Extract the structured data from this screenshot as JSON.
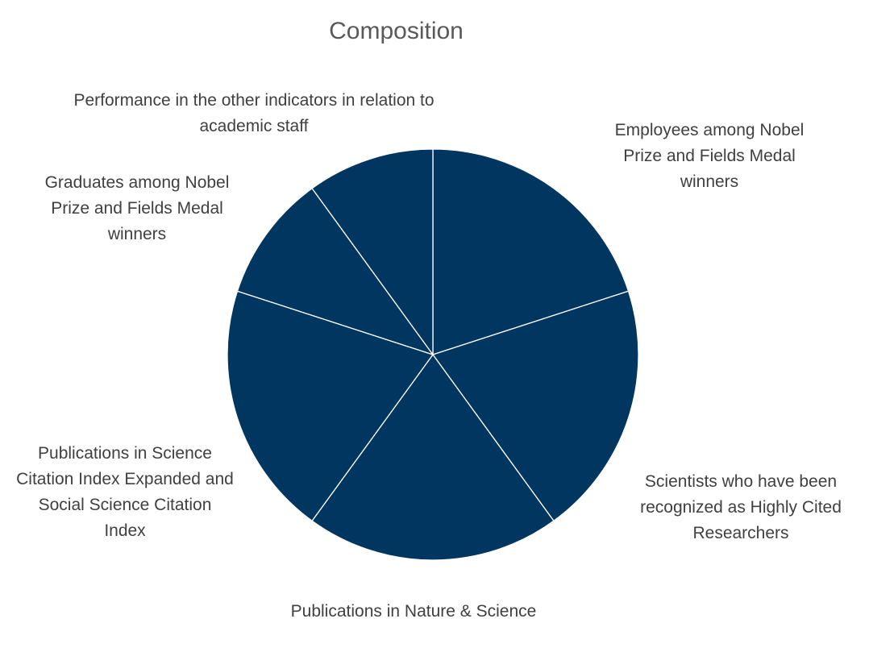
{
  "chart_data": {
    "type": "pie",
    "title": "Composition",
    "start_angle_deg": 0,
    "direction": "clockwise",
    "slice_color": "#003660",
    "separator_color": "#ffffff",
    "categories": [
      "Employees among Nobel Prize and Fields Medal winners",
      "Scientists who have been recognized as Highly Cited Researchers",
      "Publications in Nature & Science",
      "Publications in Science Citation Index Expanded and Social Science Citation Index",
      "Graduates among Nobel Prize and Fields Medal winners",
      "Performance in the other indicators in relation to academic staff"
    ],
    "values": [
      20,
      20,
      20,
      20,
      10,
      10
    ],
    "legend": "none"
  }
}
